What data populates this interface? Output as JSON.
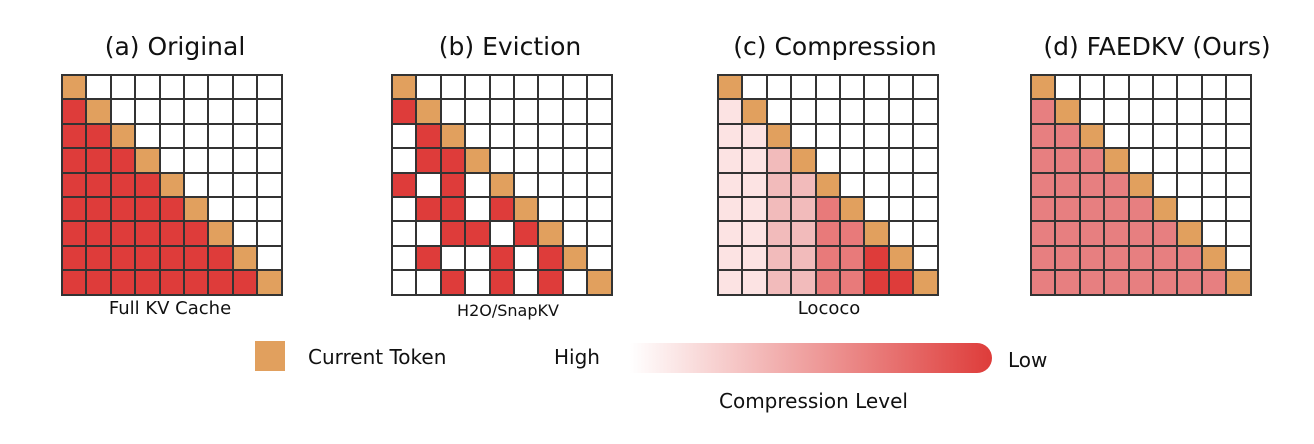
{
  "colors": {
    "current": "#E1A05E",
    "full": "#DE3C3A",
    "level1": "#FCE3E3",
    "level2": "#F2BBBB",
    "level3": "#E87A7A",
    "level4": "#DE3C3A",
    "faed": "#E77F80",
    "gradient_start": "#FFFFFF",
    "gradient_end": "#DE3C3A"
  },
  "panels": [
    {
      "title": "(a) Original",
      "caption": "Full KV Cache",
      "grid": [
        "C........",
        "FC.......",
        "FFC......",
        "FFFC.....",
        "FFFFC....",
        "FFFFFC...",
        "FFFFFFC..",
        "FFFFFFFC.",
        "FFFFFFFFC"
      ]
    },
    {
      "title": "(b) Eviction",
      "caption": "H2O/SnapKV",
      "grid": [
        "C........",
        "FC.......",
        ".FC......",
        ".FFC.....",
        "F.F.C....",
        ".FF.FC...",
        "..FF.FC..",
        ".F..F.FC.",
        "..F.F.F.C"
      ]
    },
    {
      "title": "(c) Compression",
      "caption": "Lococo",
      "grid": [
        "C........",
        "1C.......",
        "11C......",
        "112C.....",
        "1122C....",
        "11223C...",
        "112233C..",
        "1122334C.",
        "11223344C"
      ]
    },
    {
      "title": "(d) FAEDKV (Ours)",
      "caption": "",
      "grid": [
        "C........",
        "PC.......",
        "PPC......",
        "PPPC.....",
        "PPPPC....",
        "PPPPPC...",
        "PPPPPPC..",
        "PPPPPPPC.",
        "PPPPPPPPC"
      ]
    }
  ],
  "legend": {
    "current_token": "Current Token",
    "high": "High",
    "low": "Low",
    "compression_level": "Compression Level"
  }
}
